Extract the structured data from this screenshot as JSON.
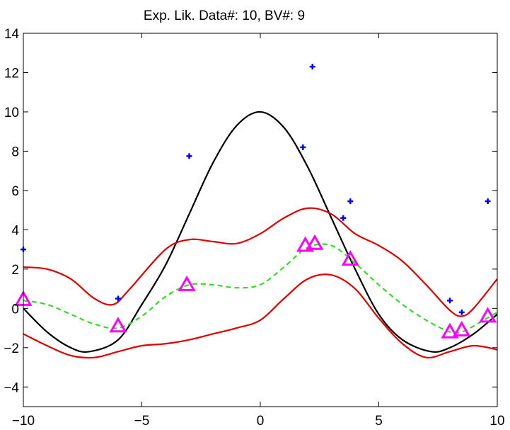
{
  "chart_data": {
    "type": "line",
    "title": "Exp. Lik.  Data#: 10, BV#: 9",
    "xlim": [
      -10,
      10
    ],
    "ylim": [
      -5,
      14
    ],
    "xticks": [
      -10,
      -5,
      0,
      5,
      10
    ],
    "yticks": [
      -4,
      -2,
      0,
      2,
      4,
      6,
      8,
      10,
      12,
      14
    ],
    "grid": false,
    "series": [
      {
        "role": "true-function",
        "style": "solid",
        "color": "#000000",
        "x": [
          -10,
          -9,
          -8,
          -7.2,
          -6,
          -5,
          -4,
          -3,
          -2,
          -1,
          0,
          1,
          2,
          3,
          4,
          5,
          6,
          7.2,
          8,
          9,
          10
        ],
        "y": [
          0.0,
          -1.2,
          -2.0,
          -2.2,
          -1.6,
          0.2,
          2.2,
          4.8,
          7.4,
          9.3,
          10.0,
          9.2,
          7.2,
          4.6,
          2.0,
          -0.3,
          -1.6,
          -2.2,
          -2.0,
          -1.3,
          -0.3
        ]
      },
      {
        "role": "upper-bound",
        "style": "solid",
        "color": "#e00000",
        "x": [
          -10,
          -9,
          -8,
          -7,
          -6.2,
          -5.5,
          -4,
          -3,
          -2,
          -1,
          0,
          1,
          2,
          3,
          4,
          5,
          6,
          7,
          8,
          8.5,
          9,
          10
        ],
        "y": [
          2.1,
          2.0,
          1.5,
          0.5,
          0.2,
          1.0,
          3.0,
          3.5,
          3.4,
          3.3,
          3.8,
          4.6,
          5.1,
          4.8,
          3.8,
          3.2,
          2.4,
          1.2,
          -0.1,
          -0.4,
          0.0,
          1.5
        ]
      },
      {
        "role": "predictive-mean",
        "style": "dashed",
        "color": "#33dd22",
        "x": [
          -10,
          -9,
          -8,
          -7,
          -6,
          -5,
          -4,
          -3,
          -2,
          -1,
          0,
          1,
          2,
          3,
          4,
          5,
          6,
          7,
          8,
          8.5,
          9,
          10
        ],
        "y": [
          0.4,
          0.2,
          -0.3,
          -0.8,
          -1.0,
          -0.4,
          0.6,
          1.2,
          1.2,
          1.05,
          1.2,
          2.1,
          3.1,
          3.2,
          2.3,
          1.2,
          0.2,
          -0.6,
          -1.2,
          -1.2,
          -0.9,
          -0.2
        ]
      },
      {
        "role": "lower-bound",
        "style": "solid",
        "color": "#e00000",
        "x": [
          -10,
          -9,
          -8,
          -7,
          -6,
          -5,
          -4,
          -3,
          -2,
          -1,
          0,
          1,
          2,
          3,
          4,
          5,
          6,
          7,
          8,
          9,
          10
        ],
        "y": [
          -1.3,
          -1.9,
          -2.4,
          -2.5,
          -2.2,
          -1.9,
          -1.8,
          -1.6,
          -1.3,
          -1.0,
          -0.6,
          0.5,
          1.5,
          1.7,
          1.0,
          -0.5,
          -1.8,
          -2.5,
          -2.2,
          -1.9,
          -2.1
        ]
      }
    ],
    "data_points": {
      "marker": "plus",
      "color": "#0000ee",
      "x": [
        -10,
        -6.0,
        -3.0,
        1.8,
        2.2,
        3.5,
        3.8,
        8.0,
        8.5,
        9.6
      ],
      "y": [
        3.0,
        0.5,
        7.75,
        8.2,
        12.3,
        4.6,
        5.45,
        0.4,
        -0.2,
        5.45
      ]
    },
    "basis_vectors": {
      "marker": "triangle",
      "color": "#ff00ff",
      "x": [
        -10,
        -6.0,
        -3.1,
        1.9,
        2.3,
        3.8,
        8.0,
        8.5,
        9.6
      ],
      "y": [
        0.45,
        -0.9,
        1.2,
        3.2,
        3.3,
        2.5,
        -1.2,
        -1.1,
        -0.4
      ]
    }
  }
}
